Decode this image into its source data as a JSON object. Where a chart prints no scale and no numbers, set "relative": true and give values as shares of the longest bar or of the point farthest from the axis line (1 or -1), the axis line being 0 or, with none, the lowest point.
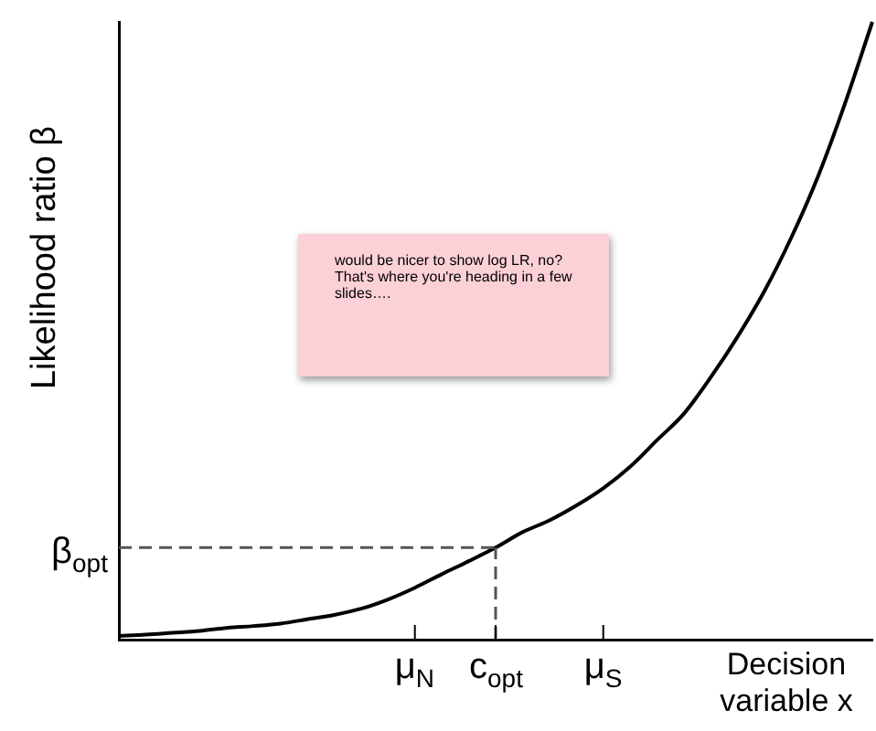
{
  "chart_data": {
    "type": "line",
    "relative": true,
    "color": "#000000",
    "marker": "none",
    "line_style": "solid",
    "grid": false,
    "legend": false,
    "ylabel": "Likelihood ratio β",
    "xlabel": "Decision variable x",
    "categories": [
      null,
      null,
      null,
      null,
      null,
      null,
      null,
      null,
      null,
      null,
      null,
      "μ$_{N}$",
      null,
      null,
      "c$_{opt}$",
      null,
      null,
      null,
      "μ$_{S}$",
      null,
      null,
      null,
      null,
      null,
      null,
      null,
      null,
      null,
      null
    ],
    "values": [
      0.006,
      0.008,
      0.011,
      0.014,
      0.019,
      0.022,
      0.026,
      0.033,
      0.04,
      0.05,
      0.065,
      0.084,
      0.106,
      0.127,
      0.149,
      0.174,
      0.193,
      0.217,
      0.245,
      0.28,
      0.323,
      0.366,
      0.425,
      0.491,
      0.565,
      0.652,
      0.752,
      0.87,
      1.0
    ],
    "ref_lines": [
      {
        "axis": "y",
        "value": 0.149,
        "label": "β$_{opt}$",
        "line_style": "dashed",
        "color": "#555555"
      },
      {
        "axis": "x",
        "value": "c$_{opt}$",
        "line_style": "dashed",
        "color": "#555555"
      }
    ],
    "annotations": [
      "would be nicer to show log LR, no?  That's where you're heading in a  few slides…."
    ]
  }
}
